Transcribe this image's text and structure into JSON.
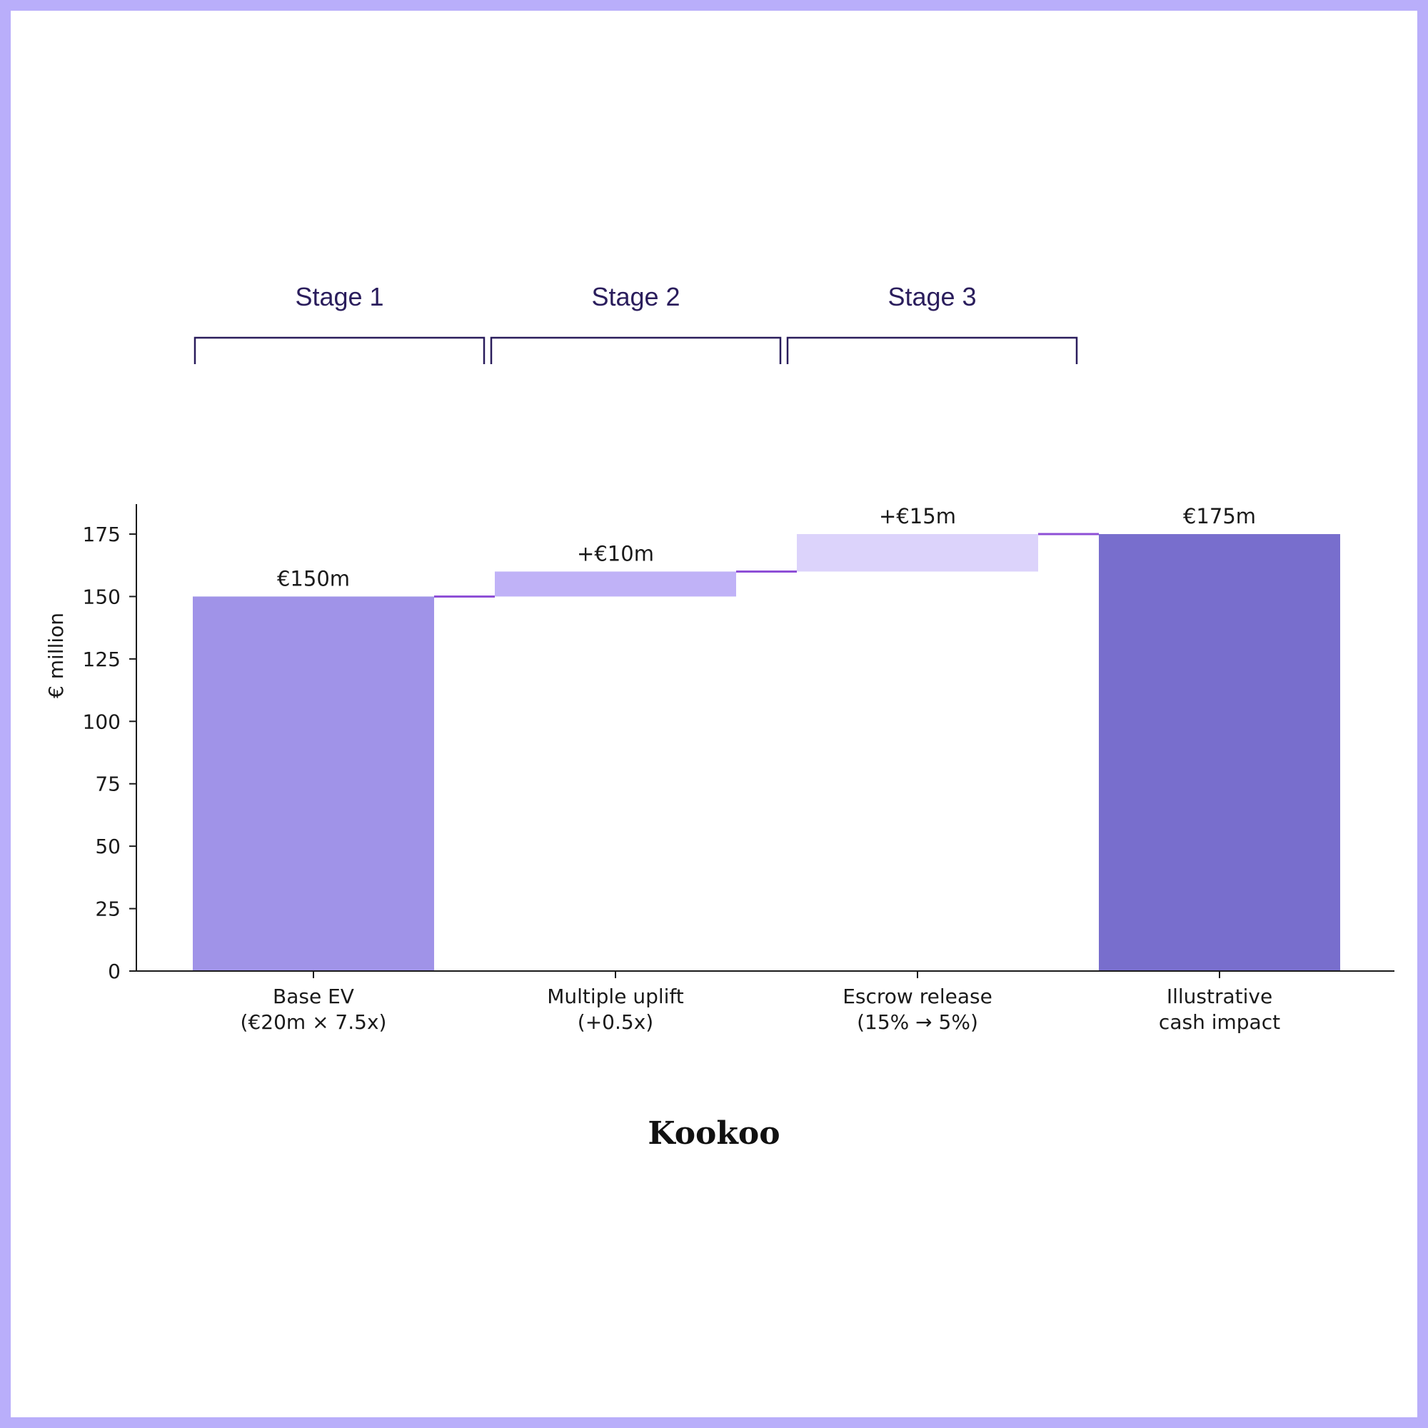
{
  "chart_data": {
    "type": "bar",
    "subtype": "waterfall",
    "categories": [
      [
        "Base EV",
        "(€20m × 7.5x)"
      ],
      [
        "Multiple uplift",
        "(+0.5x)"
      ],
      [
        "Escrow release",
        "(15% → 5%)"
      ],
      [
        "Illustrative",
        "cash impact"
      ]
    ],
    "steps": [
      {
        "kind": "total",
        "value": 150,
        "label": "€150m",
        "color": "#a093e8"
      },
      {
        "kind": "delta",
        "value": 10,
        "label": "+€10m",
        "color": "#c0b2f7"
      },
      {
        "kind": "delta",
        "value": 15,
        "label": "+€15m",
        "color": "#dcd3fb"
      },
      {
        "kind": "total",
        "value": 175,
        "label": "€175m",
        "color": "#786ecd"
      }
    ],
    "ylabel": "€ million",
    "ylim": [
      0,
      187
    ],
    "yticks": [
      0,
      25,
      50,
      75,
      100,
      125,
      150,
      175
    ],
    "connector_color": "#8e4fd6",
    "grid": false,
    "stages": [
      {
        "label": "Stage 1"
      },
      {
        "label": "Stage 2"
      },
      {
        "label": "Stage 3"
      }
    ]
  },
  "brand": {
    "name": "Kookoo"
  },
  "colors": {
    "frame": "#b9aefa",
    "stage_bracket": "#2a1d5c"
  }
}
